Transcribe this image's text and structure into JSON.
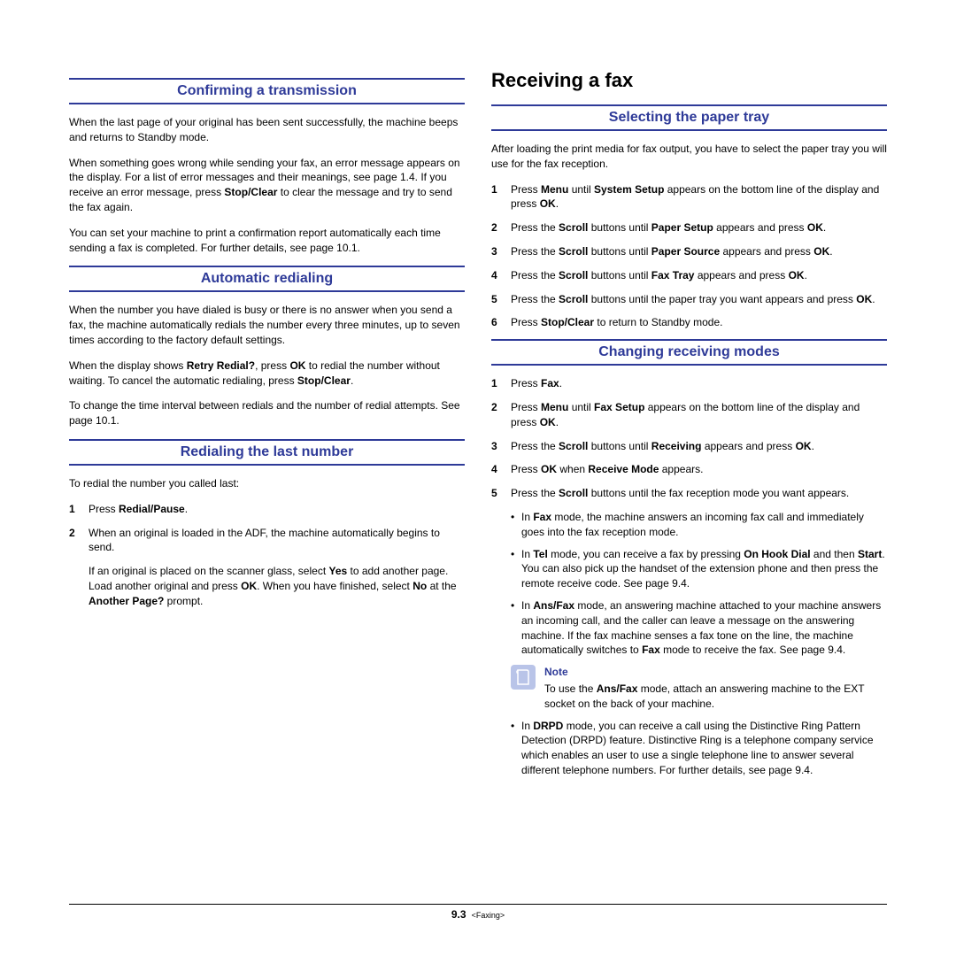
{
  "left": {
    "sections": [
      {
        "heading": "Confirming a transmission",
        "paras": [
          "When the last page of your original has been sent successfully, the machine beeps and returns to Standby mode.",
          "When something goes wrong while sending your fax, an error message appears on the display. For a list of error messages and their meanings, see page 1.4. If you receive an error message, press <b>Stop/Clear</b> to clear the message and try to send the fax again.",
          "You can set your machine to print a confirmation report automatically each time sending a fax is completed. For further details, see page 10.1."
        ]
      },
      {
        "heading": "Automatic redialing",
        "paras": [
          "When the number you have dialed is busy or there is no answer when you send a fax, the machine automatically redials the number every three minutes, up to seven times according to the factory default settings.",
          "When the display shows <b>Retry Redial?</b>, press <b>OK</b> to redial the number without waiting. To cancel the automatic redialing, press <b>Stop/Clear</b>.",
          "To change the time interval between redials and the number of redial attempts. See page 10.1."
        ]
      },
      {
        "heading": "Redialing the last number",
        "intro": "To redial the number you called last:",
        "steps": [
          {
            "n": "1",
            "t": "Press <b>Redial/Pause</b>."
          },
          {
            "n": "2",
            "t": "When an original is loaded in the ADF, the machine automatically begins to send."
          }
        ],
        "after": "If an original is placed on the scanner glass, select <b>Yes</b> to add another page. Load another original and press <b>OK</b>. When you have finished, select <b>No</b> at the <b>Another Page?</b> prompt."
      }
    ]
  },
  "right": {
    "main_heading": "Receiving a fax",
    "sections": [
      {
        "heading": "Selecting the paper tray",
        "intro": "After loading the print media for fax output, you have to select the paper tray you will use for the fax reception.",
        "steps": [
          {
            "n": "1",
            "t": "Press <b>Menu</b> until <b>System Setup</b> appears on the bottom line of the display and press <b>OK</b>."
          },
          {
            "n": "2",
            "t": "Press the <b>Scroll</b> buttons until <b>Paper Setup</b> appears and press <b>OK</b>."
          },
          {
            "n": "3",
            "t": "Press the <b>Scroll</b> buttons until <b>Paper Source</b> appears and press <b>OK</b>."
          },
          {
            "n": "4",
            "t": "Press the <b>Scroll</b> buttons until <b>Fax Tray</b> appears and press <b>OK</b>."
          },
          {
            "n": "5",
            "t": "Press the <b>Scroll</b> buttons until the paper tray you want appears and press <b>OK</b>."
          },
          {
            "n": "6",
            "t": "Press <b>Stop/Clear</b> to return to Standby mode."
          }
        ]
      },
      {
        "heading": "Changing receiving modes",
        "steps": [
          {
            "n": "1",
            "t": "Press <b>Fax</b>."
          },
          {
            "n": "2",
            "t": "Press <b>Menu</b> until <b>Fax Setup</b> appears on the bottom line of the display and press <b>OK</b>."
          },
          {
            "n": "3",
            "t": "Press the <b>Scroll</b> buttons until <b>Receiving</b> appears and press <b>OK</b>."
          },
          {
            "n": "4",
            "t": "Press <b>OK</b> when <b>Receive Mode</b> appears."
          },
          {
            "n": "5",
            "t": "Press the <b>Scroll</b> buttons until the fax reception mode you want appears."
          }
        ],
        "bullets1": [
          "In <b>Fax</b> mode, the machine answers an incoming fax call and immediately goes into the fax reception mode.",
          "In <b>Tel</b> mode, you can receive a fax by pressing <b>On Hook Dial</b> and then <b>Start</b>. You can also pick up the handset of the extension phone and then press the remote receive code. See page 9.4.",
          "In <b>Ans/Fax</b> mode, an answering machine attached to your machine answers an incoming call, and the caller can leave a message on the answering machine. If the fax machine senses a fax tone on the line, the machine automatically switches to <b>Fax</b> mode to receive the fax. See page 9.4."
        ],
        "note": {
          "title": "Note",
          "text": "To use the <b>Ans/Fax</b> mode, attach an answering machine to the EXT socket on the back of your machine."
        },
        "bullets2": [
          "In <b>DRPD</b> mode, you can receive a call using the Distinctive Ring Pattern Detection (DRPD) feature. Distinctive Ring is a telephone company service which enables an user to use a single telephone line to answer several different telephone numbers. For further details, see page 9.4."
        ]
      }
    ]
  },
  "footer": {
    "page": "9.3",
    "section": "<Faxing>"
  }
}
